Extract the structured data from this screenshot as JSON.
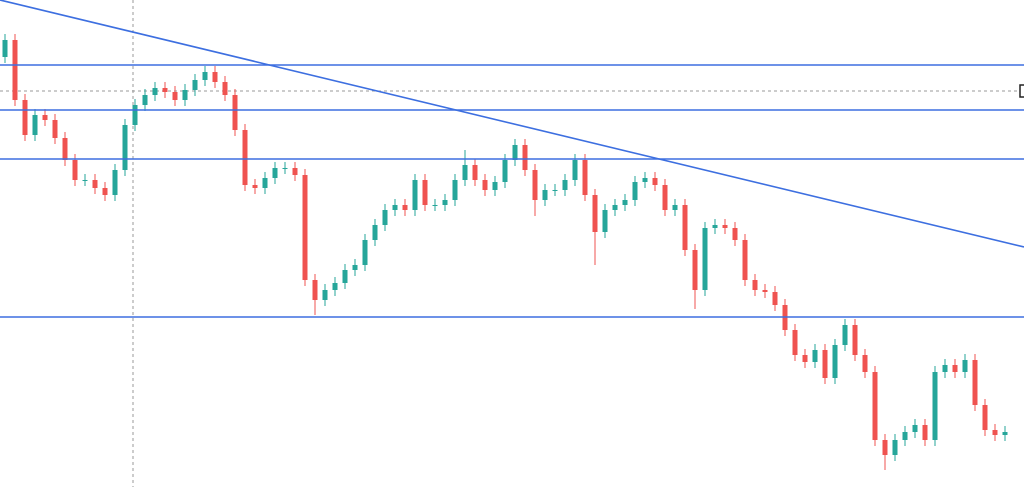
{
  "chart_data": {
    "type": "candlestick",
    "ylim": [
      0,
      487
    ],
    "up_color": "#26a69a",
    "down_color": "#ef5350",
    "level_color": "#3d6fe0",
    "open": [
      430,
      447,
      387,
      352,
      372,
      367,
      349,
      327,
      307,
      307,
      299,
      292,
      317,
      362,
      382,
      392,
      399,
      395,
      387,
      397,
      407,
      415,
      405,
      392,
      357,
      302,
      299,
      309,
      319,
      319,
      312,
      207,
      187,
      197,
      204,
      217,
      222,
      247,
      262,
      277,
      282,
      277,
      307,
      282,
      282,
      287,
      307,
      322,
      307,
      297,
      305,
      327,
      342,
      317,
      287,
      297,
      297,
      307,
      327,
      292,
      255,
      277,
      282,
      287,
      305,
      309,
      302,
      277,
      282,
      237,
      197,
      259,
      262,
      259,
      247,
      207,
      197,
      195,
      182,
      157,
      132,
      125,
      137,
      109,
      142,
      162,
      132,
      115,
      47,
      32,
      47,
      55,
      62,
      47,
      115,
      122,
      115,
      127,
      82,
      57,
      52
    ],
    "high": [
      453,
      453,
      393,
      378,
      378,
      373,
      355,
      333,
      313,
      313,
      305,
      323,
      368,
      388,
      398,
      405,
      405,
      401,
      403,
      413,
      421,
      421,
      411,
      398,
      363,
      308,
      315,
      325,
      325,
      325,
      318,
      213,
      203,
      210,
      223,
      228,
      253,
      268,
      283,
      288,
      288,
      313,
      313,
      288,
      293,
      313,
      337,
      328,
      313,
      311,
      333,
      348,
      348,
      323,
      303,
      303,
      313,
      333,
      333,
      298,
      283,
      288,
      293,
      311,
      315,
      315,
      308,
      288,
      288,
      243,
      265,
      268,
      268,
      265,
      253,
      213,
      203,
      201,
      188,
      163,
      138,
      143,
      143,
      148,
      168,
      168,
      138,
      121,
      53,
      53,
      61,
      68,
      68,
      121,
      128,
      128,
      133,
      133,
      88,
      63,
      61
    ],
    "low": [
      424,
      381,
      346,
      346,
      361,
      343,
      321,
      301,
      301,
      293,
      286,
      286,
      311,
      356,
      376,
      386,
      389,
      381,
      381,
      391,
      401,
      399,
      386,
      351,
      296,
      293,
      293,
      303,
      313,
      306,
      201,
      172,
      181,
      191,
      198,
      211,
      216,
      241,
      256,
      271,
      271,
      271,
      276,
      276,
      276,
      281,
      301,
      301,
      291,
      291,
      299,
      321,
      311,
      271,
      281,
      291,
      291,
      301,
      286,
      222,
      249,
      271,
      276,
      281,
      299,
      296,
      271,
      271,
      231,
      178,
      191,
      253,
      253,
      241,
      201,
      191,
      189,
      176,
      151,
      126,
      119,
      119,
      103,
      103,
      136,
      126,
      109,
      41,
      17,
      26,
      41,
      49,
      41,
      41,
      109,
      109,
      109,
      76,
      51,
      46,
      46
    ],
    "close": [
      447,
      387,
      352,
      372,
      367,
      349,
      327,
      307,
      307,
      299,
      292,
      317,
      362,
      382,
      392,
      399,
      395,
      387,
      397,
      407,
      415,
      405,
      392,
      357,
      302,
      299,
      309,
      319,
      319,
      312,
      207,
      187,
      197,
      204,
      217,
      222,
      247,
      262,
      277,
      282,
      277,
      307,
      282,
      282,
      287,
      307,
      322,
      307,
      297,
      305,
      327,
      342,
      317,
      287,
      297,
      297,
      307,
      327,
      292,
      255,
      277,
      282,
      287,
      305,
      309,
      302,
      277,
      282,
      237,
      197,
      259,
      262,
      259,
      247,
      207,
      197,
      195,
      182,
      157,
      132,
      125,
      137,
      109,
      142,
      162,
      132,
      115,
      47,
      32,
      47,
      55,
      62,
      47,
      115,
      122,
      115,
      127,
      82,
      57,
      52,
      55
    ],
    "levels": [
      422,
      377,
      328,
      170
    ],
    "trendline": [
      487,
      240
    ]
  }
}
